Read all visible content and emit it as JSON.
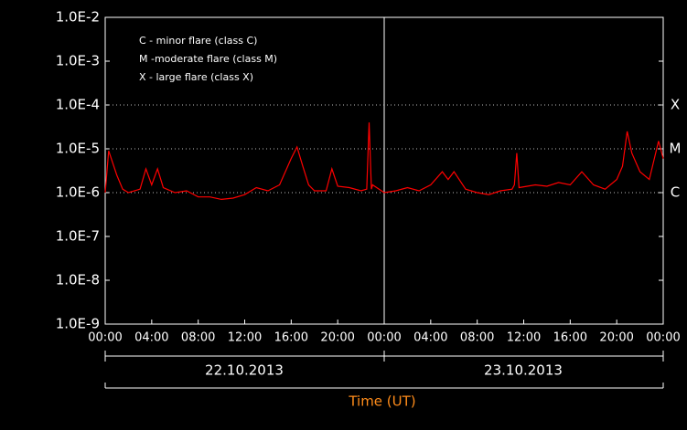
{
  "chart_data": {
    "type": "line",
    "legend_text": [
      "C - minor flare (class C)",
      "M -moderate flare (class M)",
      "X - large flare (class X)"
    ],
    "class_levels": [
      {
        "value": 0.0001,
        "label": "X"
      },
      {
        "value": 1e-05,
        "label": "M"
      },
      {
        "value": 1e-06,
        "label": "C"
      }
    ],
    "days": [
      "22.10.2013",
      "23.10.2013"
    ],
    "x_label": "Time (UT)",
    "y_scale": "log",
    "ylim": [
      1e-09,
      0.01
    ],
    "yticks": [
      {
        "value": 0.01,
        "label": "1.0E-2"
      },
      {
        "value": 0.001,
        "label": "1.0E-3"
      },
      {
        "value": 0.0001,
        "label": "1.0E-4"
      },
      {
        "value": 1e-05,
        "label": "1.0E-5"
      },
      {
        "value": 1e-06,
        "label": "1.0E-6"
      },
      {
        "value": 1e-07,
        "label": "1.0E-7"
      },
      {
        "value": 1e-08,
        "label": "1.0E-8"
      },
      {
        "value": 1e-09,
        "label": "1.0E-9"
      }
    ],
    "xlim": [
      0,
      48
    ],
    "xticks": [
      {
        "value": 0,
        "label": "00:00"
      },
      {
        "value": 4,
        "label": "04:00"
      },
      {
        "value": 8,
        "label": "08:00"
      },
      {
        "value": 12,
        "label": "12:00"
      },
      {
        "value": 16,
        "label": "16:00"
      },
      {
        "value": 20,
        "label": "20:00"
      },
      {
        "value": 24,
        "label": "00:00"
      },
      {
        "value": 28,
        "label": "04:00"
      },
      {
        "value": 32,
        "label": "08:00"
      },
      {
        "value": 36,
        "label": "12:00"
      },
      {
        "value": 40,
        "label": "16:00"
      },
      {
        "value": 44,
        "label": "20:00"
      },
      {
        "value": 48,
        "label": "00:00"
      }
    ],
    "x": [
      0,
      0.3,
      1,
      1.5,
      2,
      3,
      3.5,
      4,
      4.5,
      5,
      6,
      7,
      8,
      9,
      10,
      11,
      12,
      13,
      14,
      15,
      16,
      16.5,
      17,
      17.5,
      18,
      19,
      19.5,
      20,
      21,
      22,
      22.5,
      22.7,
      22.9,
      23,
      24,
      25,
      26,
      27,
      28,
      29,
      29.5,
      30,
      31,
      32,
      33,
      34,
      35,
      35.2,
      35.4,
      35.6,
      37,
      38,
      39,
      40,
      41,
      42,
      43,
      44,
      44.5,
      44.9,
      45.3,
      46,
      46.8,
      47.6,
      48
    ],
    "series": [
      {
        "color": "#ff0000",
        "values": [
          1e-06,
          9e-06,
          2.5e-06,
          1.2e-06,
          1e-06,
          1.2e-06,
          3.5e-06,
          1.5e-06,
          3.5e-06,
          1.3e-06,
          1e-06,
          1.1e-06,
          8e-07,
          8e-07,
          7e-07,
          7.5e-07,
          9e-07,
          1.3e-06,
          1.1e-06,
          1.5e-06,
          6e-06,
          1.1e-05,
          4e-06,
          1.5e-06,
          1.1e-06,
          1.1e-06,
          3.5e-06,
          1.4e-06,
          1.3e-06,
          1.1e-06,
          1.2e-06,
          4e-05,
          1.2e-06,
          1.5e-06,
          1e-06,
          1.1e-06,
          1.3e-06,
          1.1e-06,
          1.5e-06,
          3e-06,
          2e-06,
          3e-06,
          1.2e-06,
          1e-06,
          9e-07,
          1.1e-06,
          1.2e-06,
          1.5e-06,
          8e-06,
          1.3e-06,
          1.5e-06,
          1.4e-06,
          1.7e-06,
          1.5e-06,
          3e-06,
          1.5e-06,
          1.2e-06,
          2e-06,
          4e-06,
          2.5e-05,
          8e-06,
          3e-06,
          2e-06,
          1.5e-05,
          6e-06
        ]
      }
    ]
  }
}
